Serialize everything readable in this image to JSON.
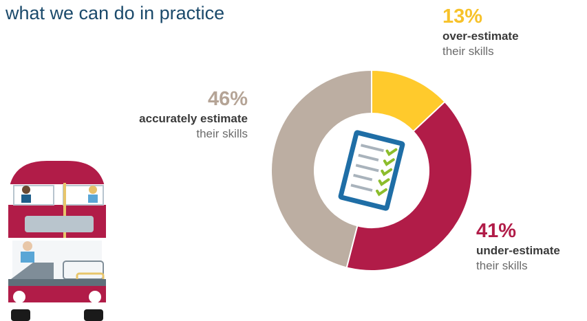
{
  "heading": "what we can do in practice",
  "chart_data": {
    "type": "pie",
    "donut": true,
    "categories": [
      "over-estimate",
      "under-estimate",
      "accurately estimate"
    ],
    "values": [
      13,
      41,
      46
    ],
    "colors": [
      "#ffca2c",
      "#b11c48",
      "#bcaea2"
    ],
    "annotations": [
      {
        "percent": "13%",
        "label_bold": "over-estimate",
        "label_light": "their skills"
      },
      {
        "percent": "46%",
        "label_bold": "accurately estimate",
        "label_light": "their skills"
      },
      {
        "percent": "41%",
        "label_bold": "under-estimate",
        "label_light": "their skills"
      }
    ]
  },
  "icons": {
    "center": "checklist-clipboard-icon",
    "decoration": "double-decker-bus-illustration"
  }
}
